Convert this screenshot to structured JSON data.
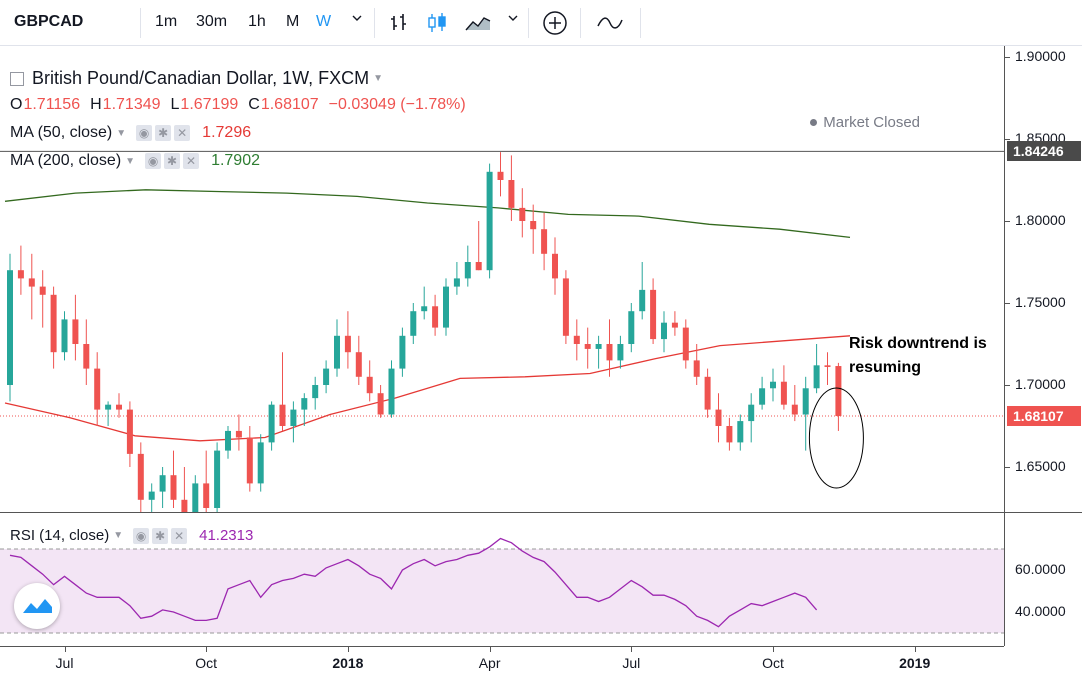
{
  "toolbar": {
    "symbol": "GBPCAD",
    "intervals": [
      {
        "label": "1m",
        "active": false
      },
      {
        "label": "30m",
        "active": false
      },
      {
        "label": "1h",
        "active": false
      },
      {
        "label": "M",
        "active": false
      },
      {
        "label": "W",
        "active": true
      }
    ],
    "icons": [
      "bar-chart-icon",
      "candlestick-icon",
      "area-chart-icon",
      "chevron-down-icon",
      "add-compare-icon",
      "indicators-icon"
    ]
  },
  "legend": {
    "title": "British Pound/Canadian Dollar, 1W, FXCM",
    "ohlc": [
      {
        "key": "O",
        "value": "1.71156"
      },
      {
        "key": "H",
        "value": "1.71349"
      },
      {
        "key": "L",
        "value": "1.67199"
      },
      {
        "key": "C",
        "value": "1.68107"
      },
      {
        "key": "",
        "value": "−0.03049 (−1.78%)"
      }
    ],
    "ma50": {
      "name": "MA (50, close)",
      "value": "1.7296",
      "color": "#e53935"
    },
    "ma200": {
      "name": "MA (200, close)",
      "value": "1.7902",
      "color": "#2e7d32"
    },
    "market_status": "Market Closed"
  },
  "annotation": {
    "line1": "Risk downtrend is",
    "line2": "resuming"
  },
  "price_axis": {
    "ticks": [
      "1.90000",
      "1.85000",
      "1.80000",
      "1.75000",
      "1.70000",
      "1.65000"
    ],
    "tick_values": [
      1.9,
      1.85,
      1.8,
      1.75,
      1.7,
      1.65
    ],
    "high_tag": "1.84246",
    "last_tag": "1.68107"
  },
  "rsi": {
    "name": "RSI (14, close)",
    "value": "41.2313",
    "ticks": [
      "60.0000",
      "40.0000"
    ],
    "tick_values": [
      60,
      40
    ],
    "upper_band": 70,
    "lower_band": 30
  },
  "time_axis": {
    "labels": [
      {
        "text": "Jul",
        "bold": false,
        "week": 5
      },
      {
        "text": "Oct",
        "bold": false,
        "week": 18
      },
      {
        "text": "2018",
        "bold": true,
        "week": 31
      },
      {
        "text": "Apr",
        "bold": false,
        "week": 44
      },
      {
        "text": "Jul",
        "bold": false,
        "week": 57
      },
      {
        "text": "Oct",
        "bold": false,
        "week": 70
      },
      {
        "text": "2019",
        "bold": true,
        "week": 83
      }
    ]
  },
  "colors": {
    "up": "#26a69a",
    "down": "#ef5350",
    "rsi_line": "#9c27b0",
    "rsi_band": "#f3e5f5"
  },
  "chart_data": {
    "type": "candlestick",
    "title": "British Pound/Canadian Dollar, 1W, FXCM",
    "ylim": [
      1.62,
      1.9
    ],
    "candles": [
      {
        "o": 1.7,
        "h": 1.78,
        "l": 1.69,
        "c": 1.77
      },
      {
        "o": 1.77,
        "h": 1.785,
        "l": 1.755,
        "c": 1.765
      },
      {
        "o": 1.765,
        "h": 1.78,
        "l": 1.74,
        "c": 1.76
      },
      {
        "o": 1.76,
        "h": 1.77,
        "l": 1.735,
        "c": 1.755
      },
      {
        "o": 1.755,
        "h": 1.76,
        "l": 1.71,
        "c": 1.72
      },
      {
        "o": 1.72,
        "h": 1.745,
        "l": 1.715,
        "c": 1.74
      },
      {
        "o": 1.74,
        "h": 1.755,
        "l": 1.715,
        "c": 1.725
      },
      {
        "o": 1.725,
        "h": 1.74,
        "l": 1.7,
        "c": 1.71
      },
      {
        "o": 1.71,
        "h": 1.72,
        "l": 1.675,
        "c": 1.685
      },
      {
        "o": 1.685,
        "h": 1.69,
        "l": 1.675,
        "c": 1.688
      },
      {
        "o": 1.688,
        "h": 1.695,
        "l": 1.68,
        "c": 1.685
      },
      {
        "o": 1.685,
        "h": 1.69,
        "l": 1.65,
        "c": 1.658
      },
      {
        "o": 1.658,
        "h": 1.665,
        "l": 1.62,
        "c": 1.63
      },
      {
        "o": 1.63,
        "h": 1.64,
        "l": 1.62,
        "c": 1.635
      },
      {
        "o": 1.635,
        "h": 1.65,
        "l": 1.625,
        "c": 1.645
      },
      {
        "o": 1.645,
        "h": 1.66,
        "l": 1.625,
        "c": 1.63
      },
      {
        "o": 1.63,
        "h": 1.65,
        "l": 1.615,
        "c": 1.62
      },
      {
        "o": 1.62,
        "h": 1.645,
        "l": 1.615,
        "c": 1.64
      },
      {
        "o": 1.64,
        "h": 1.66,
        "l": 1.62,
        "c": 1.625
      },
      {
        "o": 1.625,
        "h": 1.665,
        "l": 1.62,
        "c": 1.66
      },
      {
        "o": 1.66,
        "h": 1.675,
        "l": 1.655,
        "c": 1.672
      },
      {
        "o": 1.672,
        "h": 1.682,
        "l": 1.66,
        "c": 1.668
      },
      {
        "o": 1.668,
        "h": 1.675,
        "l": 1.635,
        "c": 1.64
      },
      {
        "o": 1.64,
        "h": 1.67,
        "l": 1.635,
        "c": 1.665
      },
      {
        "o": 1.665,
        "h": 1.69,
        "l": 1.66,
        "c": 1.688
      },
      {
        "o": 1.688,
        "h": 1.72,
        "l": 1.672,
        "c": 1.675
      },
      {
        "o": 1.675,
        "h": 1.69,
        "l": 1.665,
        "c": 1.685
      },
      {
        "o": 1.685,
        "h": 1.695,
        "l": 1.675,
        "c": 1.692
      },
      {
        "o": 1.692,
        "h": 1.705,
        "l": 1.685,
        "c": 1.7
      },
      {
        "o": 1.7,
        "h": 1.715,
        "l": 1.695,
        "c": 1.71
      },
      {
        "o": 1.71,
        "h": 1.74,
        "l": 1.705,
        "c": 1.73
      },
      {
        "o": 1.73,
        "h": 1.745,
        "l": 1.71,
        "c": 1.72
      },
      {
        "o": 1.72,
        "h": 1.73,
        "l": 1.7,
        "c": 1.705
      },
      {
        "o": 1.705,
        "h": 1.715,
        "l": 1.69,
        "c": 1.695
      },
      {
        "o": 1.695,
        "h": 1.7,
        "l": 1.68,
        "c": 1.682
      },
      {
        "o": 1.682,
        "h": 1.715,
        "l": 1.68,
        "c": 1.71
      },
      {
        "o": 1.71,
        "h": 1.735,
        "l": 1.705,
        "c": 1.73
      },
      {
        "o": 1.73,
        "h": 1.75,
        "l": 1.725,
        "c": 1.745
      },
      {
        "o": 1.745,
        "h": 1.76,
        "l": 1.74,
        "c": 1.748
      },
      {
        "o": 1.748,
        "h": 1.755,
        "l": 1.73,
        "c": 1.735
      },
      {
        "o": 1.735,
        "h": 1.765,
        "l": 1.73,
        "c": 1.76
      },
      {
        "o": 1.76,
        "h": 1.775,
        "l": 1.755,
        "c": 1.765
      },
      {
        "o": 1.765,
        "h": 1.785,
        "l": 1.76,
        "c": 1.775
      },
      {
        "o": 1.775,
        "h": 1.8,
        "l": 1.77,
        "c": 1.77
      },
      {
        "o": 1.77,
        "h": 1.835,
        "l": 1.765,
        "c": 1.83
      },
      {
        "o": 1.83,
        "h": 1.842,
        "l": 1.815,
        "c": 1.825
      },
      {
        "o": 1.825,
        "h": 1.84,
        "l": 1.8,
        "c": 1.808
      },
      {
        "o": 1.808,
        "h": 1.82,
        "l": 1.79,
        "c": 1.8
      },
      {
        "o": 1.8,
        "h": 1.81,
        "l": 1.78,
        "c": 1.795
      },
      {
        "o": 1.795,
        "h": 1.805,
        "l": 1.77,
        "c": 1.78
      },
      {
        "o": 1.78,
        "h": 1.79,
        "l": 1.755,
        "c": 1.765
      },
      {
        "o": 1.765,
        "h": 1.77,
        "l": 1.725,
        "c": 1.73
      },
      {
        "o": 1.73,
        "h": 1.74,
        "l": 1.715,
        "c": 1.725
      },
      {
        "o": 1.725,
        "h": 1.735,
        "l": 1.71,
        "c": 1.722
      },
      {
        "o": 1.722,
        "h": 1.73,
        "l": 1.71,
        "c": 1.725
      },
      {
        "o": 1.725,
        "h": 1.74,
        "l": 1.705,
        "c": 1.715
      },
      {
        "o": 1.715,
        "h": 1.73,
        "l": 1.71,
        "c": 1.725
      },
      {
        "o": 1.725,
        "h": 1.75,
        "l": 1.72,
        "c": 1.745
      },
      {
        "o": 1.745,
        "h": 1.775,
        "l": 1.74,
        "c": 1.758
      },
      {
        "o": 1.758,
        "h": 1.765,
        "l": 1.725,
        "c": 1.728
      },
      {
        "o": 1.728,
        "h": 1.745,
        "l": 1.72,
        "c": 1.738
      },
      {
        "o": 1.738,
        "h": 1.745,
        "l": 1.73,
        "c": 1.735
      },
      {
        "o": 1.735,
        "h": 1.74,
        "l": 1.71,
        "c": 1.715
      },
      {
        "o": 1.715,
        "h": 1.725,
        "l": 1.7,
        "c": 1.705
      },
      {
        "o": 1.705,
        "h": 1.71,
        "l": 1.68,
        "c": 1.685
      },
      {
        "o": 1.685,
        "h": 1.695,
        "l": 1.665,
        "c": 1.675
      },
      {
        "o": 1.675,
        "h": 1.68,
        "l": 1.66,
        "c": 1.665
      },
      {
        "o": 1.665,
        "h": 1.682,
        "l": 1.66,
        "c": 1.678
      },
      {
        "o": 1.678,
        "h": 1.695,
        "l": 1.665,
        "c": 1.688
      },
      {
        "o": 1.688,
        "h": 1.705,
        "l": 1.685,
        "c": 1.698
      },
      {
        "o": 1.698,
        "h": 1.71,
        "l": 1.69,
        "c": 1.702
      },
      {
        "o": 1.702,
        "h": 1.712,
        "l": 1.685,
        "c": 1.688
      },
      {
        "o": 1.688,
        "h": 1.7,
        "l": 1.678,
        "c": 1.682
      },
      {
        "o": 1.682,
        "h": 1.705,
        "l": 1.66,
        "c": 1.698
      },
      {
        "o": 1.698,
        "h": 1.725,
        "l": 1.695,
        "c": 1.712
      },
      {
        "o": 1.712,
        "h": 1.72,
        "l": 1.7,
        "c": 1.711
      },
      {
        "o": 1.71156,
        "h": 1.71349,
        "l": 1.67199,
        "c": 1.68107
      }
    ],
    "ma200": [
      1.812,
      1.817,
      1.819,
      1.818,
      1.817,
      1.815,
      1.811,
      1.808,
      1.804,
      1.803,
      1.798,
      1.795,
      1.79
    ],
    "ma50": [
      1.689,
      1.68,
      1.669,
      1.666,
      1.668,
      1.682,
      1.692,
      1.704,
      1.705,
      1.707,
      1.716,
      1.724,
      1.727,
      1.73
    ],
    "rsi": [
      67,
      66,
      62,
      58,
      53,
      57,
      53,
      49,
      47,
      47,
      47,
      43,
      37,
      38,
      41,
      40,
      38,
      36,
      36,
      37,
      51,
      53,
      55,
      47,
      53,
      55,
      56,
      58,
      57,
      61,
      63,
      65,
      62,
      58,
      56,
      51,
      60,
      63,
      65,
      62,
      64,
      65,
      67,
      68,
      71,
      75,
      73,
      69,
      66,
      64,
      59,
      53,
      47,
      47,
      45,
      47,
      51,
      55,
      52,
      48,
      48,
      46,
      43,
      38,
      36,
      33,
      38,
      41,
      44,
      43,
      45,
      47,
      49,
      47,
      41
    ]
  }
}
